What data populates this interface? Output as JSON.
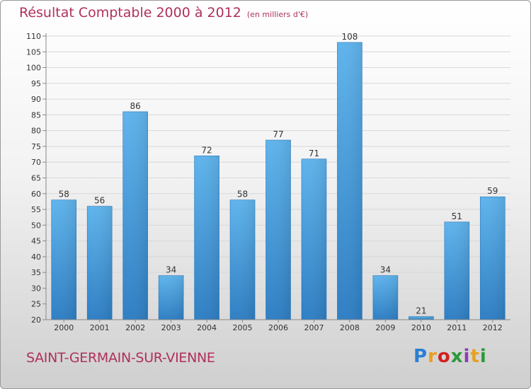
{
  "chart_data": {
    "type": "bar",
    "title": "Résultat Comptable 2000 à 2012",
    "subtitle": "(en milliers d'€)",
    "categories": [
      "2000",
      "2001",
      "2002",
      "2003",
      "2004",
      "2005",
      "2006",
      "2007",
      "2008",
      "2009",
      "2010",
      "2011",
      "2012"
    ],
    "values": [
      58,
      56,
      86,
      34,
      72,
      58,
      77,
      71,
      108,
      34,
      21,
      51,
      59
    ],
    "ylim": [
      20,
      110
    ],
    "yticks": [
      20,
      25,
      30,
      35,
      40,
      45,
      50,
      55,
      60,
      65,
      70,
      75,
      80,
      85,
      90,
      95,
      100,
      105,
      110
    ],
    "grid": true,
    "bar_color": "#4a9fe0"
  },
  "footer": {
    "city": "SAINT-GERMAIN-SUR-VIENNE",
    "logo": [
      "P",
      "r",
      "o",
      "x",
      "i",
      "t",
      "i"
    ]
  }
}
